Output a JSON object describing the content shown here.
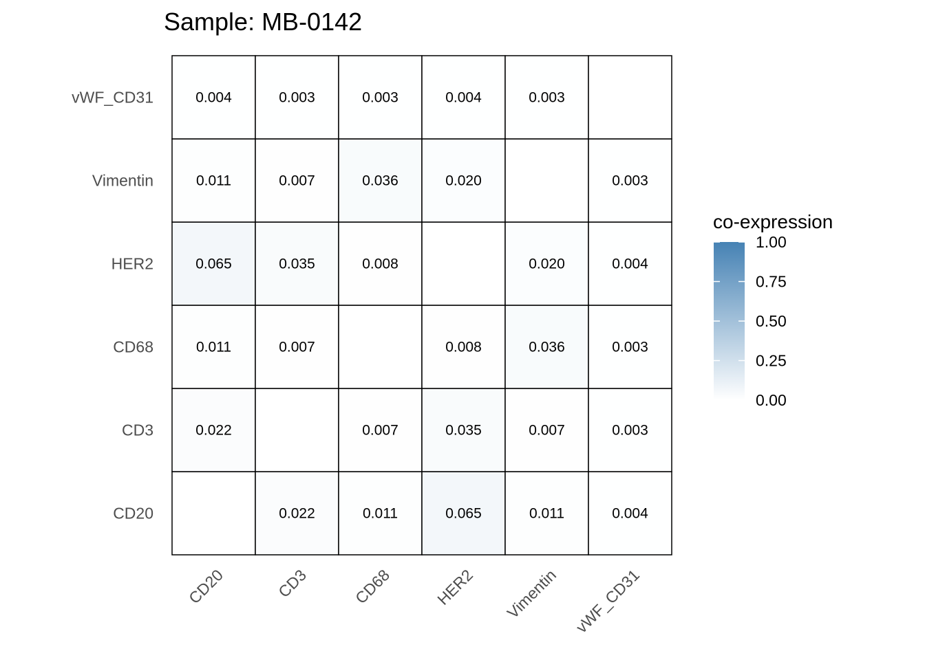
{
  "chart_data": {
    "type": "heatmap",
    "title": "Sample: MB-0142",
    "x_categories": [
      "CD20",
      "CD3",
      "CD68",
      "HER2",
      "Vimentin",
      "vWF_CD31"
    ],
    "y_categories": [
      "CD20",
      "CD3",
      "CD68",
      "HER2",
      "Vimentin",
      "vWF_CD31"
    ],
    "matrix": [
      [
        null,
        0.022,
        0.011,
        0.065,
        0.011,
        0.004
      ],
      [
        0.022,
        null,
        0.007,
        0.035,
        0.007,
        0.003
      ],
      [
        0.011,
        0.007,
        null,
        0.008,
        0.036,
        0.003
      ],
      [
        0.065,
        0.035,
        0.008,
        null,
        0.02,
        0.004
      ],
      [
        0.011,
        0.007,
        0.036,
        0.02,
        null,
        0.003
      ],
      [
        0.004,
        0.003,
        0.003,
        0.004,
        0.003,
        null
      ]
    ],
    "value_format_decimals": 3,
    "legend": {
      "title": "co-expression",
      "range": [
        0,
        1
      ],
      "ticks": [
        1.0,
        0.75,
        0.5,
        0.25,
        0.0
      ],
      "tick_labels": [
        "1.00",
        "0.75",
        "0.50",
        "0.25",
        "0.00"
      ],
      "color_low": "#ffffff",
      "color_high": "#4682b4",
      "placement": "right"
    },
    "grid": false
  }
}
